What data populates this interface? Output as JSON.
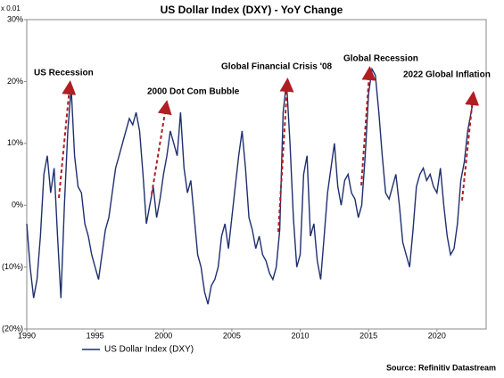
{
  "chart_data": {
    "type": "line",
    "title": "US Dollar Index (DXY) - YoY Change",
    "y_unit_label": "x 0.01",
    "source": "Source: Refinitiv Datastream",
    "annotations": [
      "US Recession",
      "2000 Dot Com Bubble",
      "Global Financial Crisis '08",
      "Global Recession",
      "2022 Global Inflation"
    ],
    "xlim": [
      1990,
      2023.6
    ],
    "xticks": [
      1990,
      1995,
      2000,
      2005,
      2010,
      2015,
      2020
    ],
    "ylim": [
      -20,
      30
    ],
    "yticks": [
      {
        "value": -20,
        "label": "(20%)"
      },
      {
        "value": -10,
        "label": "(10%)"
      },
      {
        "value": 0,
        "label": "0%"
      },
      {
        "value": 10,
        "label": "10%"
      },
      {
        "value": 20,
        "label": "20%"
      },
      {
        "value": 30,
        "label": "30%"
      }
    ],
    "x": [
      1990,
      1990.25,
      1990.5,
      1990.75,
      1991,
      1991.25,
      1991.5,
      1991.75,
      1992,
      1992.25,
      1992.5,
      1992.75,
      1993,
      1993.25,
      1993.5,
      1993.75,
      1994,
      1994.25,
      1994.5,
      1994.75,
      1995,
      1995.25,
      1995.5,
      1995.75,
      1996,
      1996.25,
      1996.5,
      1996.75,
      1997,
      1997.25,
      1997.5,
      1997.75,
      1998,
      1998.25,
      1998.5,
      1998.75,
      1999,
      1999.25,
      1999.5,
      1999.75,
      2000,
      2000.25,
      2000.5,
      2000.75,
      2001,
      2001.25,
      2001.5,
      2001.75,
      2002,
      2002.25,
      2002.5,
      2002.75,
      2003,
      2003.25,
      2003.5,
      2003.75,
      2004,
      2004.25,
      2004.5,
      2004.75,
      2005,
      2005.25,
      2005.5,
      2005.75,
      2006,
      2006.25,
      2006.5,
      2006.75,
      2007,
      2007.25,
      2007.5,
      2007.75,
      2008,
      2008.25,
      2008.5,
      2008.75,
      2009,
      2009.25,
      2009.5,
      2009.75,
      2010,
      2010.25,
      2010.5,
      2010.75,
      2011,
      2011.25,
      2011.5,
      2011.75,
      2012,
      2012.25,
      2012.5,
      2012.75,
      2013,
      2013.25,
      2013.5,
      2013.75,
      2014,
      2014.25,
      2014.5,
      2014.75,
      2015,
      2015.25,
      2015.5,
      2015.75,
      2016,
      2016.25,
      2016.5,
      2016.75,
      2017,
      2017.25,
      2017.5,
      2017.75,
      2018,
      2018.25,
      2018.5,
      2018.75,
      2019,
      2019.25,
      2019.5,
      2019.75,
      2020,
      2020.25,
      2020.5,
      2020.75,
      2021,
      2021.25,
      2021.5,
      2021.75,
      2022,
      2022.25,
      2022.5,
      2022.75
    ],
    "series": [
      {
        "name": "US Dollar Index (DXY)",
        "color": "#1f2f6e",
        "values": [
          -3,
          -10,
          -15,
          -12,
          -5,
          5,
          8,
          2,
          6,
          -5,
          -15,
          0,
          12,
          19,
          8,
          3,
          2,
          -3,
          -5,
          -8,
          -10,
          -12,
          -8,
          -4,
          -2,
          2,
          6,
          8,
          10,
          12,
          14,
          13,
          15,
          12,
          5,
          -3,
          0,
          3,
          -2,
          1,
          5,
          8,
          12,
          10,
          8,
          15,
          6,
          2,
          4,
          -2,
          -8,
          -10,
          -14,
          -16,
          -13,
          -12,
          -10,
          -5,
          -3,
          -7,
          -2,
          3,
          8,
          12,
          6,
          -2,
          -4,
          -7,
          -5,
          -8,
          -9,
          -11,
          -12,
          -10,
          -4,
          15,
          20,
          10,
          -2,
          -10,
          -8,
          5,
          8,
          -5,
          -3,
          -9,
          -12,
          -5,
          2,
          6,
          10,
          3,
          0,
          4,
          5,
          2,
          1,
          -2,
          0,
          8,
          18,
          22,
          21,
          15,
          8,
          2,
          1,
          3,
          5,
          0,
          -6,
          -8,
          -10,
          -4,
          3,
          5,
          6,
          4,
          5,
          3,
          2,
          6,
          0,
          -5,
          -8,
          -7,
          -3,
          4,
          7,
          12,
          15,
          18
        ]
      }
    ],
    "legend": "bottom"
  }
}
